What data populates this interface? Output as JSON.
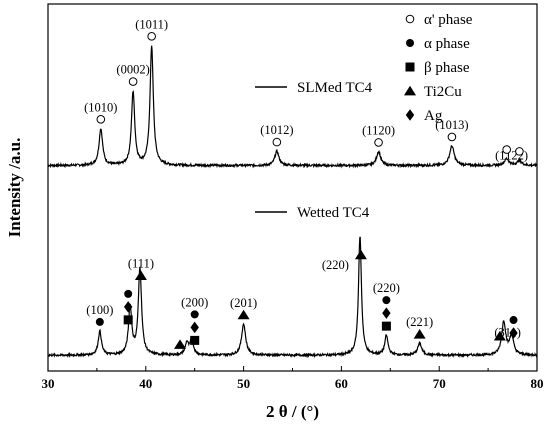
{
  "chart_data": {
    "type": "line",
    "xlabel": "2 θ / (°)",
    "ylabel": "Intensity /a.u.",
    "xlim": [
      30,
      80
    ],
    "x_ticks": [
      "30",
      "40",
      "50",
      "60",
      "70",
      "80"
    ],
    "y_ticks": "none",
    "grid": false,
    "legend_position": "top-right",
    "legend": [
      {
        "marker": "open-circle",
        "label": "α' phase"
      },
      {
        "marker": "filled-circle",
        "label": "α phase"
      },
      {
        "marker": "filled-square",
        "label": "β phase"
      },
      {
        "marker": "filled-triangle",
        "label": "Ti2Cu"
      },
      {
        "marker": "filled-diamond",
        "label": "Ag"
      }
    ],
    "series": [
      {
        "name": "SLMed TC4",
        "baseline": 0.56,
        "noise": 0.003,
        "peaks": [
          {
            "x": 35.4,
            "height": 0.1,
            "width": 0.22
          },
          {
            "x": 38.7,
            "height": 0.2,
            "width": 0.2
          },
          {
            "x": 40.6,
            "height": 0.325,
            "width": 0.2
          },
          {
            "x": 53.4,
            "height": 0.039,
            "width": 0.25
          },
          {
            "x": 63.8,
            "height": 0.038,
            "width": 0.25
          },
          {
            "x": 71.3,
            "height": 0.053,
            "width": 0.28
          },
          {
            "x": 76.9,
            "height": 0.018,
            "width": 0.28
          },
          {
            "x": 78.2,
            "height": 0.013,
            "width": 0.28
          }
        ],
        "labels": [
          {
            "x": 35.4,
            "text": "(1010)",
            "markers": [
              "open-circle"
            ]
          },
          {
            "x": 38.7,
            "text": "(0002)",
            "markers": [
              "open-circle"
            ]
          },
          {
            "x": 40.6,
            "text": "(1011)",
            "markers": [
              "open-circle"
            ]
          },
          {
            "x": 53.4,
            "text": "(1012)",
            "markers": [
              "open-circle"
            ]
          },
          {
            "x": 63.8,
            "text": "(1120)",
            "markers": [
              "open-circle"
            ]
          },
          {
            "x": 71.3,
            "text": "(1013)",
            "markers": [
              "open-circle"
            ]
          },
          {
            "x": 77.4,
            "text": "(1122)",
            "markers": []
          }
        ],
        "extra_markers": [
          {
            "x": 76.9,
            "marker": "open-circle"
          },
          {
            "x": 78.2,
            "marker": "open-circle"
          }
        ]
      },
      {
        "name": "Wetted TC4",
        "baseline": 0.043,
        "noise": 0.003,
        "peaks": [
          {
            "x": 35.3,
            "height": 0.065,
            "width": 0.2
          },
          {
            "x": 38.4,
            "height": 0.13,
            "width": 0.2
          },
          {
            "x": 39.4,
            "height": 0.235,
            "width": 0.2
          },
          {
            "x": 44.2,
            "height": 0.033,
            "width": 0.2
          },
          {
            "x": 44.7,
            "height": 0.043,
            "width": 0.2
          },
          {
            "x": 50.0,
            "height": 0.085,
            "width": 0.25
          },
          {
            "x": 61.9,
            "height": 0.325,
            "width": 0.18
          },
          {
            "x": 64.6,
            "height": 0.053,
            "width": 0.2
          },
          {
            "x": 68.0,
            "height": 0.032,
            "width": 0.25
          },
          {
            "x": 76.6,
            "height": 0.09,
            "width": 0.25
          },
          {
            "x": 77.4,
            "height": 0.05,
            "width": 0.25
          }
        ],
        "labels": [
          {
            "x": 35.3,
            "text": "(100)",
            "markers": [
              "filled-circle"
            ]
          },
          {
            "x": 39.5,
            "text": "(111)",
            "markers": [
              "filled-triangle"
            ]
          },
          {
            "x": 45.0,
            "text": "(200)",
            "markers": [
              "filled-circle",
              "filled-diamond",
              "filled-square"
            ]
          },
          {
            "x": 50.0,
            "text": "(201)",
            "markers": [
              "filled-triangle"
            ]
          },
          {
            "x": 62.0,
            "text": "(220)",
            "markers": [
              "filled-triangle"
            ],
            "side": "left"
          },
          {
            "x": 64.6,
            "text": "(220)",
            "markers": [
              "filled-circle",
              "filled-diamond",
              "filled-square"
            ]
          },
          {
            "x": 68.0,
            "text": "(221)",
            "markers": [
              "filled-triangle"
            ]
          },
          {
            "x": 77.0,
            "text": "(311)",
            "markers": []
          }
        ],
        "extra_markers": [
          {
            "x": 38.2,
            "marker": "filled-circle"
          },
          {
            "x": 38.2,
            "marker": "filled-diamond"
          },
          {
            "x": 38.2,
            "marker": "filled-square"
          },
          {
            "x": 43.5,
            "marker": "filled-triangle"
          },
          {
            "x": 76.2,
            "marker": "filled-triangle"
          },
          {
            "x": 77.6,
            "marker": "filled-circle"
          },
          {
            "x": 77.6,
            "marker": "filled-diamond"
          }
        ]
      }
    ]
  }
}
